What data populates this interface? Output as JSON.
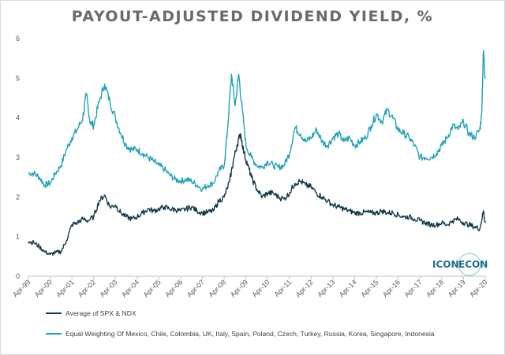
{
  "chart_data": {
    "type": "line",
    "title": "PAYOUT-ADJUSTED DIVIDEND YIELD, %",
    "xlabel": "",
    "ylabel": "",
    "ylim": [
      0,
      6
    ],
    "yticks": [
      "0",
      "1",
      "2",
      "3",
      "4",
      "5",
      "6"
    ],
    "x_tick_labels": [
      "Apr-99",
      "Apr-00",
      "Apr-01",
      "Apr-02",
      "Apr-03",
      "Apr-04",
      "Apr-05",
      "Apr-06",
      "Apr-07",
      "Apr-08",
      "Apr-09",
      "Apr-10",
      "Apr-11",
      "Apr-12",
      "Apr-13",
      "Apr-14",
      "Apr-15",
      "Apr-16",
      "Apr-17",
      "Apr-18",
      "Apr-19",
      "Apr-20"
    ],
    "grid": false,
    "legend_position": "bottom",
    "series": [
      {
        "name": "Average of SPX & NDX",
        "color": "#12394a",
        "points": [
          [
            "Apr-99",
            0.88
          ],
          [
            "Jul-99",
            0.85
          ],
          [
            "Oct-99",
            0.75
          ],
          [
            "Jan-00",
            0.62
          ],
          [
            "Apr-00",
            0.55
          ],
          [
            "Jul-00",
            0.6
          ],
          [
            "Oct-00",
            0.62
          ],
          [
            "Jan-01",
            0.9
          ],
          [
            "Apr-01",
            1.3
          ],
          [
            "Jul-01",
            1.35
          ],
          [
            "Oct-01",
            1.45
          ],
          [
            "Jan-02",
            1.4
          ],
          [
            "Apr-02",
            1.5
          ],
          [
            "Jul-02",
            1.9
          ],
          [
            "Oct-02",
            2.05
          ],
          [
            "Jan-03",
            1.75
          ],
          [
            "Apr-03",
            1.8
          ],
          [
            "Jul-03",
            1.6
          ],
          [
            "Oct-03",
            1.5
          ],
          [
            "Jan-04",
            1.45
          ],
          [
            "Apr-04",
            1.5
          ],
          [
            "Jul-04",
            1.6
          ],
          [
            "Oct-04",
            1.7
          ],
          [
            "Jan-05",
            1.65
          ],
          [
            "Apr-05",
            1.7
          ],
          [
            "Jul-05",
            1.75
          ],
          [
            "Oct-05",
            1.7
          ],
          [
            "Jan-06",
            1.68
          ],
          [
            "Apr-06",
            1.65
          ],
          [
            "Jul-06",
            1.7
          ],
          [
            "Oct-06",
            1.75
          ],
          [
            "Jan-07",
            1.65
          ],
          [
            "Apr-07",
            1.6
          ],
          [
            "Jul-07",
            1.62
          ],
          [
            "Oct-07",
            1.65
          ],
          [
            "Jan-08",
            1.9
          ],
          [
            "Apr-08",
            2.0
          ],
          [
            "Jul-08",
            2.4
          ],
          [
            "Sep-08",
            2.9
          ],
          [
            "Nov-08",
            3.3
          ],
          [
            "Jan-09",
            3.6
          ],
          [
            "Mar-09",
            3.1
          ],
          [
            "May-09",
            2.8
          ],
          [
            "Jul-09",
            2.5
          ],
          [
            "Oct-09",
            2.2
          ],
          [
            "Jan-10",
            2.0
          ],
          [
            "Apr-10",
            2.1
          ],
          [
            "Jul-10",
            2.1
          ],
          [
            "Oct-10",
            2.0
          ],
          [
            "Jan-11",
            1.95
          ],
          [
            "Apr-11",
            2.1
          ],
          [
            "Jul-11",
            2.35
          ],
          [
            "Oct-11",
            2.4
          ],
          [
            "Jan-12",
            2.3
          ],
          [
            "Apr-12",
            2.25
          ],
          [
            "Jul-12",
            2.1
          ],
          [
            "Oct-12",
            2.0
          ],
          [
            "Jan-13",
            1.9
          ],
          [
            "Apr-13",
            1.8
          ],
          [
            "Jul-13",
            1.75
          ],
          [
            "Oct-13",
            1.7
          ],
          [
            "Jan-14",
            1.65
          ],
          [
            "Apr-14",
            1.6
          ],
          [
            "Jul-14",
            1.6
          ],
          [
            "Oct-14",
            1.62
          ],
          [
            "Jan-15",
            1.6
          ],
          [
            "Apr-15",
            1.6
          ],
          [
            "Jul-15",
            1.65
          ],
          [
            "Oct-15",
            1.6
          ],
          [
            "Jan-16",
            1.6
          ],
          [
            "Apr-16",
            1.55
          ],
          [
            "Jul-16",
            1.5
          ],
          [
            "Oct-16",
            1.5
          ],
          [
            "Jan-17",
            1.45
          ],
          [
            "Apr-17",
            1.4
          ],
          [
            "Jul-17",
            1.35
          ],
          [
            "Oct-17",
            1.3
          ],
          [
            "Jan-18",
            1.3
          ],
          [
            "Apr-18",
            1.35
          ],
          [
            "Jul-18",
            1.3
          ],
          [
            "Oct-18",
            1.4
          ],
          [
            "Jan-19",
            1.45
          ],
          [
            "Apr-19",
            1.35
          ],
          [
            "Jul-19",
            1.3
          ],
          [
            "Oct-19",
            1.25
          ],
          [
            "Jan-20",
            1.2
          ],
          [
            "Mar-20",
            1.65
          ],
          [
            "Apr-20",
            1.35
          ]
        ]
      },
      {
        "name": "Equal Weighting Of Mexico, Chile, Colombia, UK, Italy, Spain, Poland, Czech, Turkey, Russia, Korea, Singapore, Indonesia",
        "color": "#22a2b5",
        "points": [
          [
            "Apr-99",
            2.6
          ],
          [
            "Jul-99",
            2.6
          ],
          [
            "Oct-99",
            2.5
          ],
          [
            "Jan-00",
            2.3
          ],
          [
            "Apr-00",
            2.35
          ],
          [
            "Jul-00",
            2.6
          ],
          [
            "Oct-00",
            2.8
          ],
          [
            "Jan-01",
            3.2
          ],
          [
            "Apr-01",
            3.5
          ],
          [
            "Jul-01",
            3.7
          ],
          [
            "Oct-01",
            4.0
          ],
          [
            "Dec-01",
            4.6
          ],
          [
            "Feb-02",
            3.9
          ],
          [
            "Apr-02",
            3.8
          ],
          [
            "Jul-02",
            4.4
          ],
          [
            "Oct-02",
            4.85
          ],
          [
            "Jan-03",
            4.4
          ],
          [
            "Apr-03",
            4.0
          ],
          [
            "Jul-03",
            3.6
          ],
          [
            "Oct-03",
            3.3
          ],
          [
            "Jan-04",
            3.2
          ],
          [
            "Apr-04",
            3.2
          ],
          [
            "Jul-04",
            3.1
          ],
          [
            "Oct-04",
            3.0
          ],
          [
            "Jan-05",
            2.9
          ],
          [
            "Apr-05",
            2.8
          ],
          [
            "Jul-05",
            2.7
          ],
          [
            "Oct-05",
            2.55
          ],
          [
            "Jan-06",
            2.45
          ],
          [
            "Apr-06",
            2.4
          ],
          [
            "Jul-06",
            2.45
          ],
          [
            "Oct-06",
            2.4
          ],
          [
            "Jan-07",
            2.3
          ],
          [
            "Apr-07",
            2.2
          ],
          [
            "Jul-07",
            2.3
          ],
          [
            "Oct-07",
            2.35
          ],
          [
            "Jan-08",
            2.65
          ],
          [
            "Apr-08",
            2.8
          ],
          [
            "Jun-08",
            3.8
          ],
          [
            "Aug-08",
            5.1
          ],
          [
            "Oct-08",
            4.3
          ],
          [
            "Dec-08",
            5.1
          ],
          [
            "Feb-09",
            4.2
          ],
          [
            "Apr-09",
            3.3
          ],
          [
            "Jul-09",
            3.0
          ],
          [
            "Oct-09",
            2.8
          ],
          [
            "Jan-10",
            2.75
          ],
          [
            "Apr-10",
            2.9
          ],
          [
            "Jul-10",
            2.8
          ],
          [
            "Oct-10",
            2.75
          ],
          [
            "Jan-11",
            2.8
          ],
          [
            "Apr-11",
            3.1
          ],
          [
            "Jul-11",
            3.75
          ],
          [
            "Oct-11",
            3.6
          ],
          [
            "Jan-12",
            3.4
          ],
          [
            "Apr-12",
            3.5
          ],
          [
            "Jul-12",
            3.7
          ],
          [
            "Oct-12",
            3.4
          ],
          [
            "Jan-13",
            3.3
          ],
          [
            "Apr-13",
            3.5
          ],
          [
            "Jul-13",
            3.6
          ],
          [
            "Oct-13",
            3.4
          ],
          [
            "Jan-14",
            3.5
          ],
          [
            "Apr-14",
            3.3
          ],
          [
            "Jul-14",
            3.4
          ],
          [
            "Oct-14",
            3.5
          ],
          [
            "Jan-15",
            3.8
          ],
          [
            "Apr-15",
            4.1
          ],
          [
            "Jul-15",
            3.9
          ],
          [
            "Oct-15",
            4.2
          ],
          [
            "Jan-16",
            4.0
          ],
          [
            "Apr-16",
            3.7
          ],
          [
            "Jul-16",
            3.6
          ],
          [
            "Oct-16",
            3.5
          ],
          [
            "Jan-17",
            3.3
          ],
          [
            "Apr-17",
            3.0
          ],
          [
            "Jul-17",
            3.0
          ],
          [
            "Oct-17",
            3.0
          ],
          [
            "Jan-18",
            3.1
          ],
          [
            "Apr-18",
            3.3
          ],
          [
            "Jul-18",
            3.5
          ],
          [
            "Oct-18",
            3.8
          ],
          [
            "Jan-19",
            3.7
          ],
          [
            "Apr-19",
            3.9
          ],
          [
            "Jul-19",
            3.6
          ],
          [
            "Oct-19",
            3.5
          ],
          [
            "Jan-20",
            3.7
          ],
          [
            "Feb-20",
            4.1
          ],
          [
            "Mar-20",
            5.7
          ],
          [
            "Apr-20",
            5.0
          ]
        ]
      }
    ]
  },
  "logo": {
    "text_left": "ICON",
    "text_right": "ECON",
    "color": "#1f6f8b"
  }
}
